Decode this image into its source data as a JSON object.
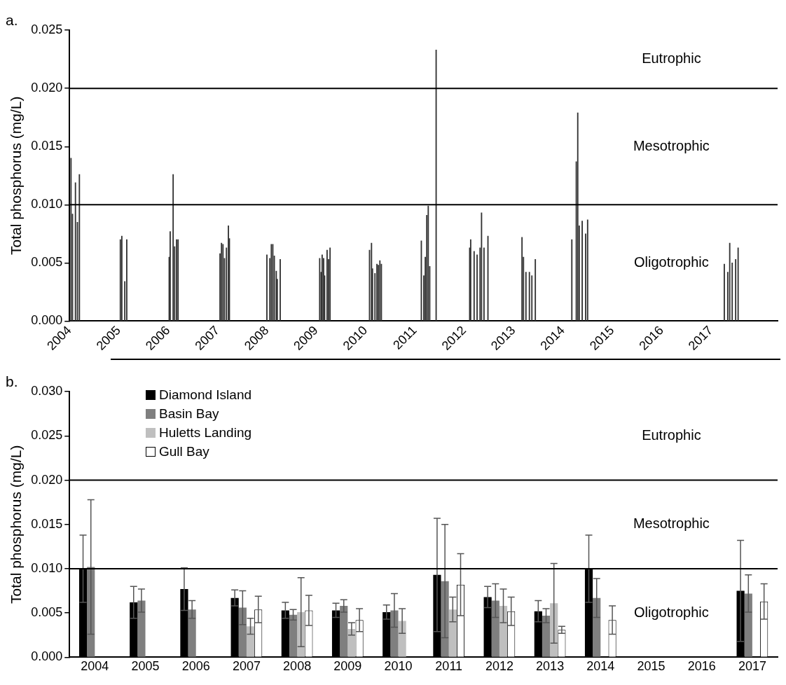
{
  "chart_data": [
    {
      "type": "bar",
      "title": "a.",
      "ylabel": "Total phosphorus (mg/L)",
      "x": [
        2004.03,
        2004.06,
        2004.12,
        2004.16,
        2004.2,
        2005.03,
        2005.06,
        2005.12,
        2005.16,
        2006.02,
        2006.04,
        2006.1,
        2006.13,
        2006.17,
        2006.2,
        2007.05,
        2007.08,
        2007.11,
        2007.14,
        2007.18,
        2007.22,
        2007.24,
        2008.0,
        2008.06,
        2008.09,
        2008.12,
        2008.15,
        2008.19,
        2008.21,
        2008.27,
        2009.07,
        2009.1,
        2009.12,
        2009.15,
        2009.17,
        2009.22,
        2009.25,
        2009.28,
        2010.08,
        2010.12,
        2010.14,
        2010.19,
        2010.23,
        2010.26,
        2010.29,
        2010.32,
        2011.13,
        2011.18,
        2011.21,
        2011.24,
        2011.27,
        2011.3,
        2011.43,
        2012.11,
        2012.13,
        2012.2,
        2012.26,
        2012.32,
        2012.35,
        2012.4,
        2012.48,
        2013.17,
        2013.2,
        2013.25,
        2013.32,
        2013.37,
        2013.44,
        2014.18,
        2014.27,
        2014.3,
        2014.33,
        2014.39,
        2014.46,
        2014.5,
        2017.27,
        2017.34,
        2017.38,
        2017.43,
        2017.5,
        2017.55
      ],
      "values": [
        0.014,
        0.0092,
        0.0119,
        0.0085,
        0.0126,
        0.007,
        0.0073,
        0.0034,
        0.007,
        0.0055,
        0.0077,
        0.0126,
        0.0064,
        0.007,
        0.007,
        0.0058,
        0.0067,
        0.0066,
        0.0054,
        0.0063,
        0.0082,
        0.0071,
        0.0057,
        0.0054,
        0.0066,
        0.0066,
        0.0056,
        0.0043,
        0.0036,
        0.0053,
        0.0054,
        0.0042,
        0.0057,
        0.0054,
        0.0039,
        0.0061,
        0.0053,
        0.0063,
        0.0061,
        0.0067,
        0.0045,
        0.0041,
        0.0049,
        0.0048,
        0.0052,
        0.0049,
        0.0069,
        0.0039,
        0.0055,
        0.0091,
        0.0099,
        0.0047,
        0.0233,
        0.0063,
        0.007,
        0.006,
        0.0057,
        0.0063,
        0.0093,
        0.0063,
        0.0073,
        0.0072,
        0.0055,
        0.0042,
        0.0042,
        0.0039,
        0.0053,
        0.007,
        0.0137,
        0.0179,
        0.0082,
        0.0086,
        0.0075,
        0.0087,
        0.0049,
        0.0042,
        0.0067,
        0.005,
        0.0053,
        0.0063
      ],
      "color": "#333333",
      "xlim": [
        2004,
        2018.35
      ],
      "xticks": [
        2004,
        2005,
        2006,
        2007,
        2008,
        2009,
        2010,
        2011,
        2012,
        2013,
        2014,
        2015,
        2016,
        2017
      ],
      "ylim": [
        0,
        0.025
      ],
      "yticks": [
        {
          "value": 0,
          "label": "0.000"
        },
        {
          "value": 0.005,
          "label": "0.005"
        },
        {
          "value": 0.01,
          "label": "0.010"
        },
        {
          "value": 0.015,
          "label": "0.015"
        },
        {
          "value": 0.02,
          "label": "0.020"
        },
        {
          "value": 0.025,
          "label": "0.025"
        }
      ],
      "ref_lines": [
        {
          "axis": "y",
          "value": 0.01
        },
        {
          "axis": "y",
          "value": 0.02
        }
      ],
      "annotations": [
        "Eutrophic",
        "Mesotrophic",
        "Oligotrophic"
      ],
      "grid": false,
      "legend": false
    },
    {
      "type": "bar",
      "title": "b.",
      "ylabel": "Total phosphorus (mg/L)",
      "categories": [
        "2004",
        "2005",
        "2006",
        "2007",
        "2008",
        "2009",
        "2010",
        "2011",
        "2012",
        "2013",
        "2014",
        "2015",
        "2016",
        "2017"
      ],
      "series": [
        {
          "name": "Diamond Island",
          "color": "#000000",
          "values": [
            0.01,
            0.0062,
            0.0077,
            0.0067,
            0.0053,
            0.0053,
            0.0051,
            0.0093,
            0.0068,
            0.0052,
            0.01,
            null,
            null,
            0.0075
          ],
          "errors": [
            0.0038,
            0.0018,
            0.0024,
            0.0009,
            0.0009,
            0.0008,
            0.0008,
            0.0064,
            0.0012,
            0.0012,
            0.0038,
            null,
            null,
            0.0057
          ]
        },
        {
          "name": "Basin Bay",
          "color": "#7f7f7f",
          "values": [
            0.0102,
            0.0064,
            0.0054,
            0.0056,
            0.0048,
            0.0058,
            0.0053,
            0.0086,
            0.0064,
            0.0047,
            0.0067,
            null,
            null,
            0.0072
          ],
          "errors": [
            0.0076,
            0.0013,
            0.001,
            0.0019,
            0.0006,
            0.0007,
            0.0019,
            0.0064,
            0.0019,
            0.0008,
            0.0022,
            null,
            null,
            0.0021
          ]
        },
        {
          "name": "Huletts Landing",
          "color": "#bfbfbf",
          "values": [
            null,
            null,
            null,
            0.0035,
            0.0051,
            0.0032,
            0.0041,
            0.0054,
            0.0058,
            0.0061,
            null,
            null,
            null,
            null
          ],
          "errors": [
            null,
            null,
            null,
            0.0009,
            0.0039,
            0.0007,
            0.0014,
            0.0014,
            0.0019,
            0.0045,
            null,
            null,
            null,
            null
          ]
        },
        {
          "name": "Gull Bay",
          "color": "#ffffff",
          "values": [
            null,
            null,
            null,
            0.0054,
            0.0053,
            0.0042,
            null,
            0.0082,
            0.0052,
            0.0031,
            0.0042,
            null,
            null,
            0.0063
          ],
          "errors": [
            null,
            null,
            null,
            0.0015,
            0.0017,
            0.0013,
            null,
            0.0035,
            0.0016,
            0.0004,
            0.0016,
            null,
            null,
            0.002
          ]
        }
      ],
      "ylim": [
        0,
        0.03
      ],
      "yticks": [
        {
          "value": 0,
          "label": "0.000"
        },
        {
          "value": 0.005,
          "label": "0.005"
        },
        {
          "value": 0.01,
          "label": "0.010"
        },
        {
          "value": 0.015,
          "label": "0.015"
        },
        {
          "value": 0.02,
          "label": "0.020"
        },
        {
          "value": 0.025,
          "label": "0.025"
        },
        {
          "value": 0.03,
          "label": "0.030"
        }
      ],
      "ref_lines": [
        {
          "axis": "y",
          "value": 0.01
        },
        {
          "axis": "y",
          "value": 0.02
        }
      ],
      "annotations": [
        "Eutrophic",
        "Mesotrophic",
        "Oligotrophic"
      ],
      "grid": false,
      "legend": "top left"
    }
  ]
}
